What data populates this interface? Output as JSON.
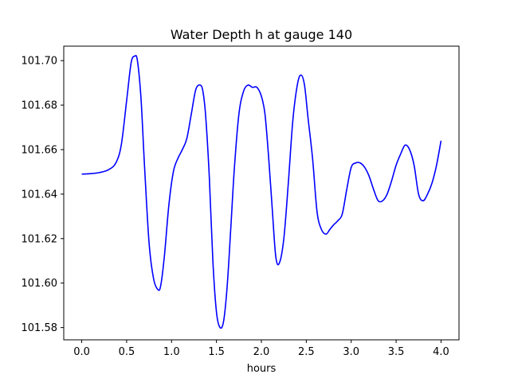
{
  "chart_data": {
    "type": "line",
    "title": "Water Depth h at gauge 140",
    "xlabel": "hours",
    "ylabel": "",
    "xlim": [
      -0.2,
      4.2
    ],
    "ylim": [
      101.5745,
      101.7065
    ],
    "xticks": [
      0.0,
      0.5,
      1.0,
      1.5,
      2.0,
      2.5,
      3.0,
      3.5,
      4.0
    ],
    "xtick_labels": [
      "0.0",
      "0.5",
      "1.0",
      "1.5",
      "2.0",
      "2.5",
      "3.0",
      "3.5",
      "4.0"
    ],
    "yticks": [
      101.58,
      101.6,
      101.62,
      101.64,
      101.66,
      101.68,
      101.7
    ],
    "ytick_labels": [
      "101.58",
      "101.60",
      "101.62",
      "101.64",
      "101.66",
      "101.68",
      "101.70"
    ],
    "grid": false,
    "series": [
      {
        "color": "#0000ff",
        "x": [
          0.0,
          0.1,
          0.2,
          0.3,
          0.38,
          0.44,
          0.5,
          0.55,
          0.59,
          0.62,
          0.66,
          0.7,
          0.75,
          0.8,
          0.85,
          0.88,
          0.92,
          0.97,
          1.02,
          1.07,
          1.12,
          1.17,
          1.22,
          1.27,
          1.32,
          1.35,
          1.38,
          1.42,
          1.46,
          1.5,
          1.54,
          1.58,
          1.62,
          1.66,
          1.7,
          1.75,
          1.8,
          1.85,
          1.9,
          1.95,
          2.0,
          2.04,
          2.08,
          2.12,
          2.16,
          2.2,
          2.25,
          2.3,
          2.35,
          2.4,
          2.44,
          2.48,
          2.52,
          2.57,
          2.62,
          2.67,
          2.72,
          2.76,
          2.8,
          2.85,
          2.9,
          2.95,
          3.0,
          3.05,
          3.1,
          3.15,
          3.2,
          3.25,
          3.3,
          3.35,
          3.4,
          3.45,
          3.5,
          3.55,
          3.6,
          3.65,
          3.7,
          3.75,
          3.8,
          3.85,
          3.9,
          3.95,
          4.0
        ],
        "y": [
          101.649,
          101.6492,
          101.6497,
          101.651,
          101.654,
          101.662,
          101.682,
          101.699,
          101.702,
          101.7,
          101.683,
          101.652,
          101.618,
          101.602,
          101.597,
          101.599,
          101.612,
          101.635,
          101.65,
          101.656,
          101.66,
          101.665,
          101.676,
          101.687,
          101.689,
          101.686,
          101.675,
          101.648,
          101.61,
          101.587,
          101.58,
          101.583,
          101.599,
          101.625,
          101.652,
          101.676,
          101.686,
          101.689,
          101.688,
          101.688,
          101.684,
          101.676,
          101.657,
          101.634,
          101.612,
          101.609,
          101.62,
          101.645,
          101.673,
          101.689,
          101.6935,
          101.689,
          101.674,
          101.656,
          101.632,
          101.624,
          101.622,
          101.624,
          101.626,
          101.628,
          101.631,
          101.642,
          101.652,
          101.654,
          101.654,
          101.652,
          101.648,
          101.642,
          101.637,
          101.637,
          101.64,
          101.646,
          101.653,
          101.658,
          101.662,
          101.66,
          101.653,
          101.64,
          101.637,
          101.64,
          101.645,
          101.653,
          101.664
        ]
      }
    ]
  }
}
